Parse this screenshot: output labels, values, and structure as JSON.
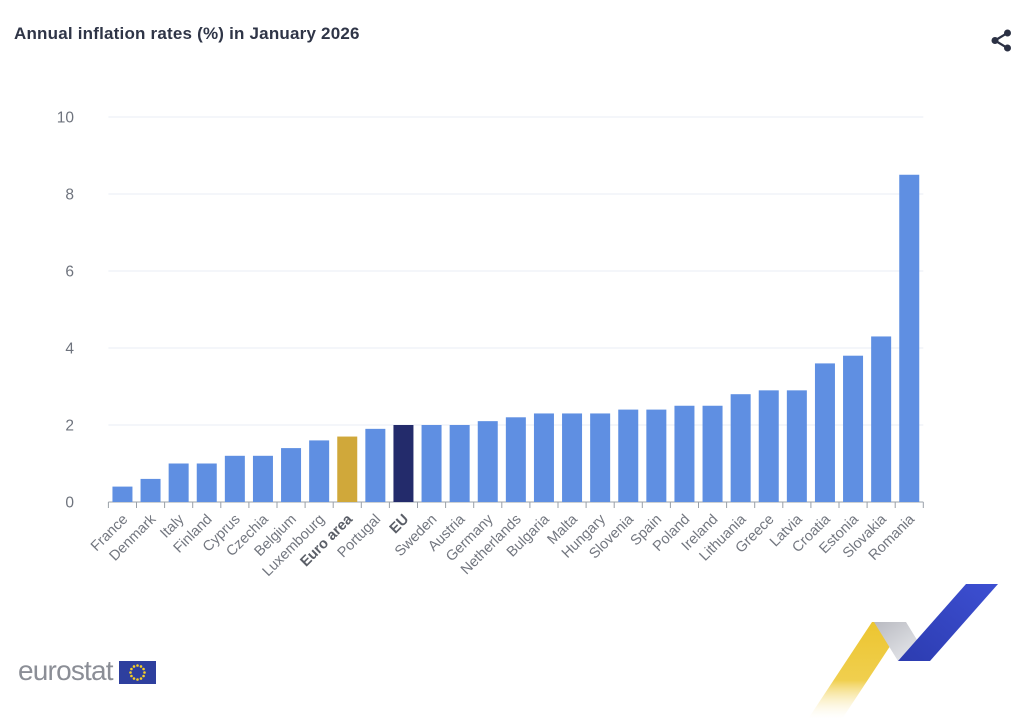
{
  "header": {
    "title": "Annual inflation rates (%) in January 2026",
    "share_icon": "share-icon"
  },
  "chart_data": {
    "type": "bar",
    "title": "Annual inflation rates (%) in January 2026",
    "categories": [
      "France",
      "Denmark",
      "Italy",
      "Finland",
      "Cyprus",
      "Czechia",
      "Belgium",
      "Luxembourg",
      "Euro area",
      "Portugal",
      "EU",
      "Sweden",
      "Austria",
      "Germany",
      "Netherlands",
      "Bulgaria",
      "Malta",
      "Hungary",
      "Slovenia",
      "Spain",
      "Poland",
      "Ireland",
      "Lithuania",
      "Greece",
      "Latvia",
      "Croatia",
      "Estonia",
      "Slovakia",
      "Romania"
    ],
    "values": [
      0.4,
      0.6,
      1.0,
      1.0,
      1.2,
      1.2,
      1.4,
      1.6,
      1.7,
      1.9,
      2.0,
      2.0,
      2.0,
      2.1,
      2.2,
      2.3,
      2.3,
      2.3,
      2.4,
      2.4,
      2.5,
      2.5,
      2.8,
      2.9,
      2.9,
      3.6,
      3.8,
      4.3,
      8.5
    ],
    "xlabel": "",
    "ylabel": "",
    "ylim": [
      0,
      10
    ],
    "ytick_step": 2,
    "yticks": [
      0,
      2,
      4,
      6,
      8,
      10
    ],
    "grid": true,
    "legend": null,
    "x_label_rotation_deg": -45,
    "bold_categories": [
      "Euro area",
      "EU"
    ],
    "bar_overrides": {
      "Euro area": "#d0a83a",
      "EU": "#232b6b"
    },
    "colors": {
      "bar": "#5f8fe2",
      "grid": "#e9edf4",
      "axis_line": "#9aa0a8",
      "axis_label": "#6e737d",
      "x_label": "#72767f",
      "x_label_bold": "#5a5e67",
      "title": "#2f3547"
    }
  },
  "footer": {
    "logo_text": "eurostat",
    "flag_colors": {
      "field": "#2e3f9e",
      "stars": "#f8d024"
    },
    "ribbon_colors": {
      "yellow": "#eec838",
      "fold": "#c9cbd1",
      "blue": "#3748c6"
    }
  }
}
